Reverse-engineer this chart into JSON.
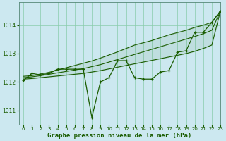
{
  "title": "Graphe pression niveau de la mer (hPa)",
  "bg_color": "#cce8f0",
  "grid_color": "#88ccaa",
  "line_color": "#1a5c00",
  "xlim": [
    -0.5,
    23
  ],
  "ylim": [
    1010.5,
    1014.8
  ],
  "yticks": [
    1011,
    1012,
    1013,
    1014
  ],
  "xticks": [
    0,
    1,
    2,
    3,
    4,
    5,
    6,
    7,
    8,
    9,
    10,
    11,
    12,
    13,
    14,
    15,
    16,
    17,
    18,
    19,
    20,
    21,
    22,
    23
  ],
  "main_series": [
    1012.05,
    1012.3,
    1012.25,
    1012.3,
    1012.45,
    1012.45,
    1012.45,
    1012.45,
    1010.75,
    1012.0,
    1012.15,
    1012.75,
    1012.75,
    1012.15,
    1012.1,
    1012.1,
    1012.35,
    1012.4,
    1013.05,
    1013.1,
    1013.75,
    1013.75,
    1014.1,
    1014.5
  ],
  "smooth_top": [
    1012.2,
    1012.22,
    1012.28,
    1012.34,
    1012.42,
    1012.5,
    1012.58,
    1012.66,
    1012.74,
    1012.84,
    1012.95,
    1013.06,
    1013.18,
    1013.3,
    1013.38,
    1013.46,
    1013.56,
    1013.66,
    1013.74,
    1013.82,
    1013.92,
    1014.0,
    1014.1,
    1014.5
  ],
  "smooth_mid": [
    1012.15,
    1012.18,
    1012.22,
    1012.27,
    1012.32,
    1012.37,
    1012.42,
    1012.47,
    1012.54,
    1012.61,
    1012.7,
    1012.79,
    1012.88,
    1012.97,
    1013.06,
    1013.15,
    1013.24,
    1013.33,
    1013.42,
    1013.51,
    1013.6,
    1013.7,
    1013.82,
    1014.5
  ],
  "smooth_bot": [
    1012.1,
    1012.12,
    1012.15,
    1012.18,
    1012.21,
    1012.24,
    1012.27,
    1012.3,
    1012.35,
    1012.4,
    1012.46,
    1012.52,
    1012.58,
    1012.64,
    1012.7,
    1012.76,
    1012.82,
    1012.88,
    1012.94,
    1013.0,
    1013.08,
    1013.18,
    1013.3,
    1014.5
  ],
  "title_fontsize": 6.5,
  "tick_fontsize": 5.0
}
